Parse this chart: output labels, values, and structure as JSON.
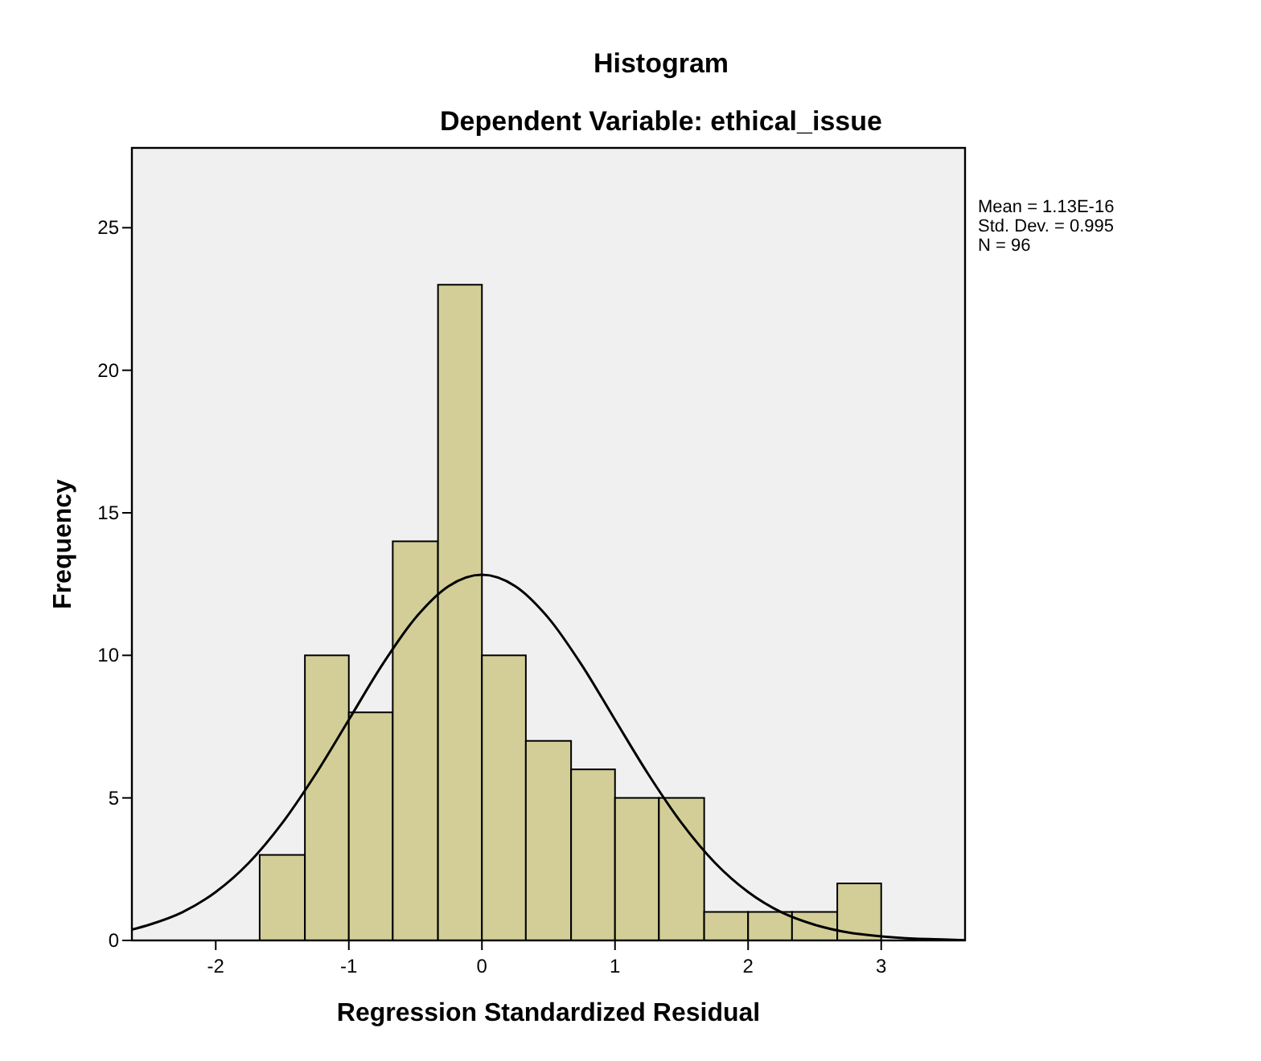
{
  "chart_data": {
    "type": "histogram",
    "title": "Histogram",
    "subtitle": "Dependent Variable: ethical_issue",
    "xlabel": "Regression Standardized Residual",
    "ylabel": "Frequency",
    "annotations": [
      "Mean = 1.13E-16",
      "Std. Dev. = 0.995",
      "N = 96"
    ],
    "series": [
      {
        "color": "#d3ce97",
        "bins": [
          -1.67,
          -1.33,
          -1,
          -0.67,
          -0.33,
          0,
          0.33,
          0.67,
          1,
          1.33,
          1.67,
          2,
          2.33,
          2.67,
          3
        ],
        "values": [
          3,
          10,
          8,
          14,
          23,
          10,
          7,
          6,
          5,
          5,
          1,
          1,
          1,
          2
        ]
      },
      {
        "type": "line",
        "color": "#000000",
        "x": [
          -2.63,
          -2.5,
          -2.25,
          -2,
          -1.75,
          -1.5,
          -1.25,
          -1,
          -0.75,
          -0.5,
          -0.25,
          0,
          0.25,
          0.5,
          0.75,
          1,
          1.25,
          1.5,
          1.75,
          2,
          2.25,
          2.5,
          2.75,
          3,
          3.25,
          3.5,
          3.63
        ],
        "values": [
          0.38,
          0.55,
          0.99,
          1.7,
          2.73,
          4.12,
          5.83,
          7.74,
          9.66,
          11.31,
          12.43,
          12.83,
          12.43,
          11.31,
          9.66,
          7.74,
          5.83,
          4.12,
          2.73,
          1.7,
          0.99,
          0.55,
          0.28,
          0.14,
          0.06,
          0.03,
          0.01
        ]
      }
    ],
    "xlim": [
      -2.63,
      3.63
    ],
    "xticks": [
      -2,
      -1,
      0,
      1,
      2,
      3
    ],
    "ylim": [
      0,
      27.8
    ],
    "yticks": [
      0,
      5,
      10,
      15,
      20,
      25
    ],
    "grid": false
  }
}
